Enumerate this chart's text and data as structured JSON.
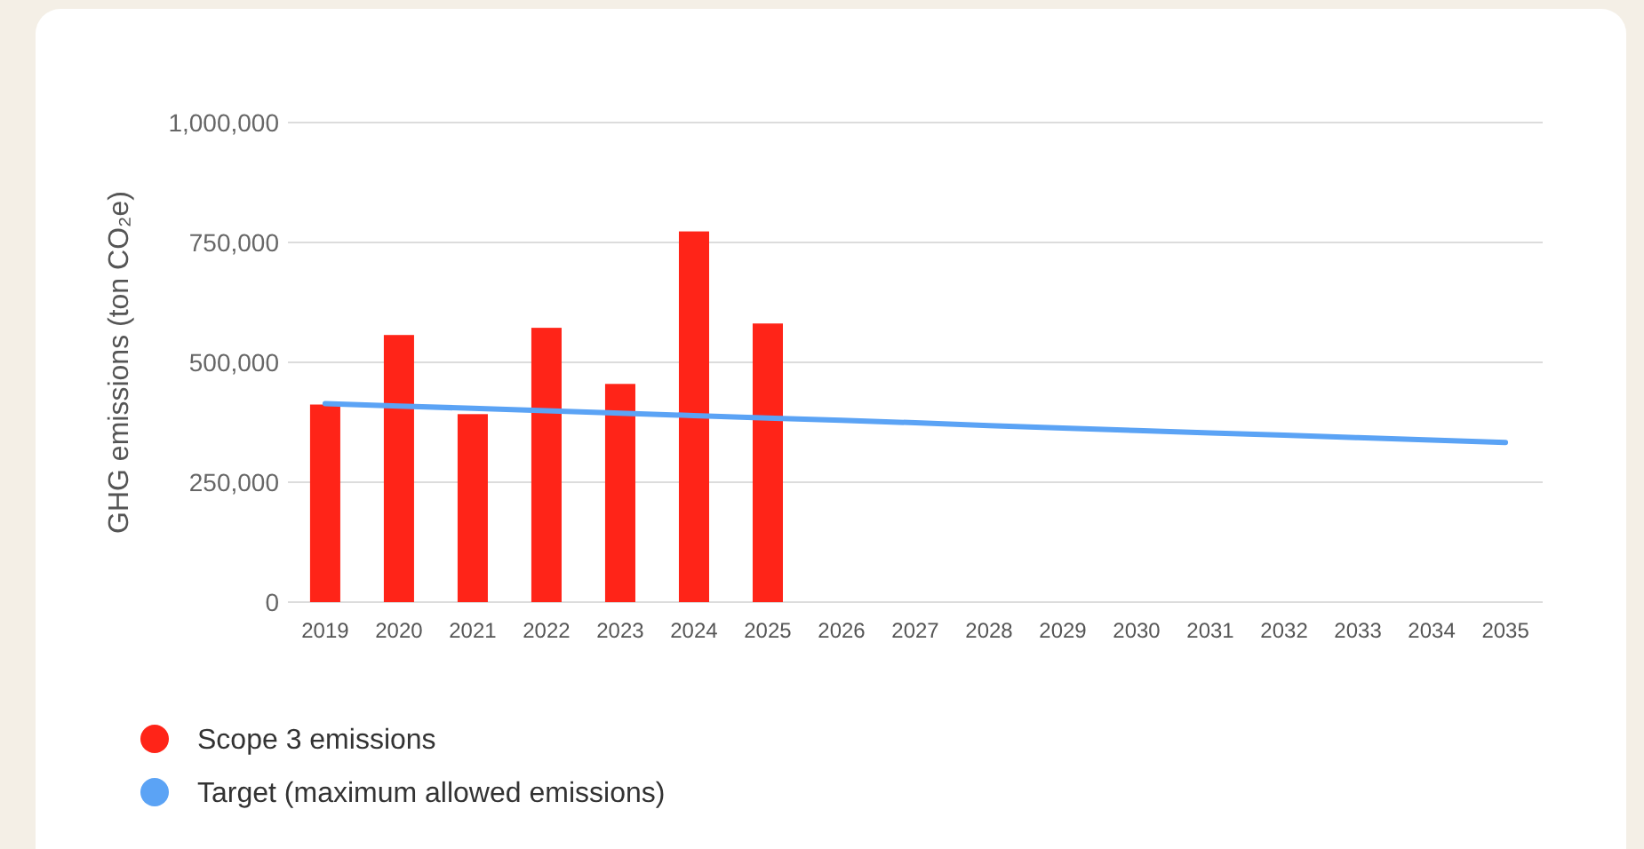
{
  "chart_data": {
    "type": "bar",
    "ylabel": "GHG emissions (ton CO₂e)",
    "categories": [
      "2019",
      "2020",
      "2021",
      "2022",
      "2023",
      "2024",
      "2025",
      "2026",
      "2027",
      "2028",
      "2029",
      "2030",
      "2031",
      "2032",
      "2033",
      "2034",
      "2035"
    ],
    "series": [
      {
        "name": "Scope 3 emissions",
        "color": "#ff2418",
        "values": [
          412000,
          557000,
          392000,
          572000,
          455000,
          773000,
          581000,
          null,
          null,
          null,
          null,
          null,
          null,
          null,
          null,
          null,
          null
        ]
      },
      {
        "name": "Target (maximum allowed emissions)",
        "type": "line",
        "color": "#5ba3f5",
        "values": [
          414000,
          409000,
          404000,
          399000,
          394000,
          389000,
          384000,
          379000,
          374000,
          368000,
          363000,
          358000,
          353000,
          348000,
          343000,
          338000,
          333000
        ]
      }
    ],
    "ylim": [
      0,
      1000000
    ],
    "yticks": [
      {
        "value": 0,
        "label": "0"
      },
      {
        "value": 250000,
        "label": "250,000"
      },
      {
        "value": 500000,
        "label": "500,000"
      },
      {
        "value": 750000,
        "label": "750,000"
      },
      {
        "value": 1000000,
        "label": "1,000,000"
      }
    ],
    "grid": "y",
    "legend": "bottom left"
  }
}
